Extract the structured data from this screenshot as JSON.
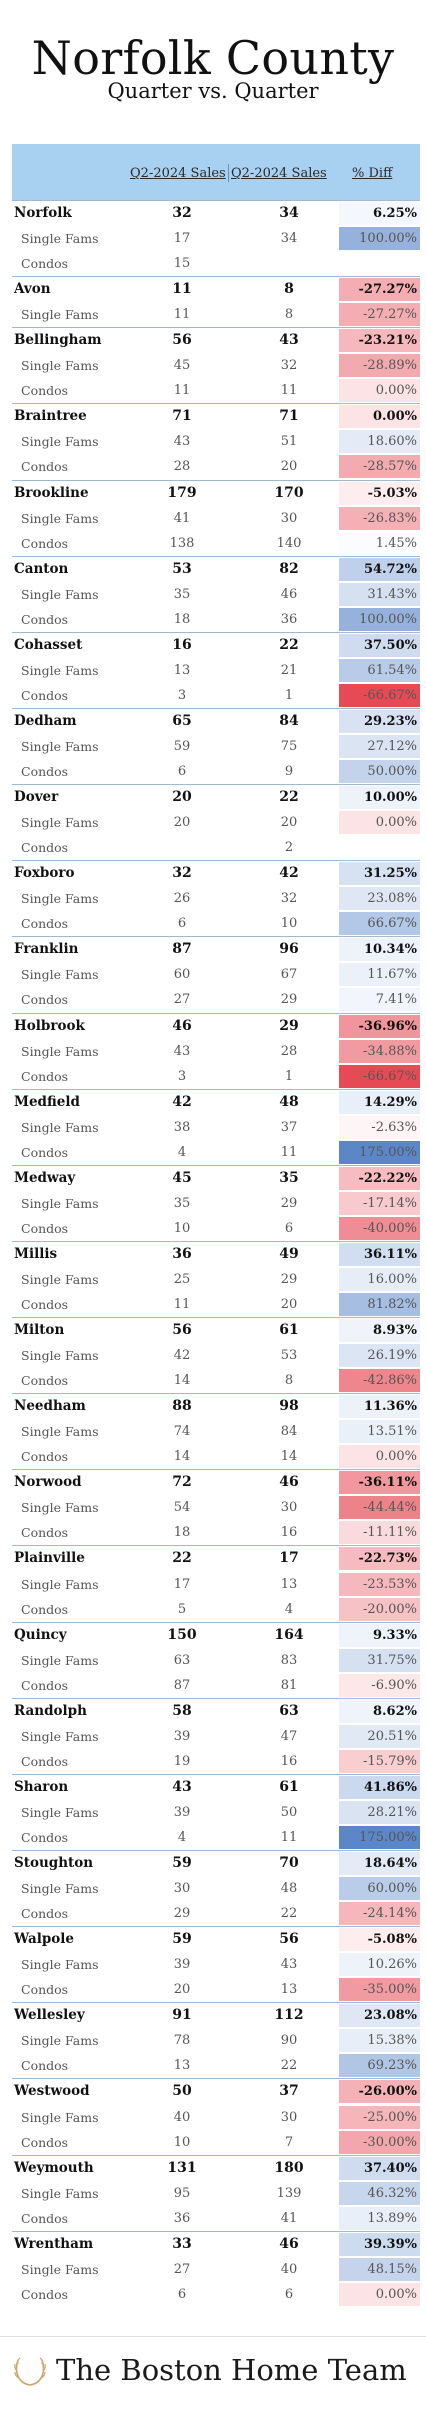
{
  "header": {
    "title": "Norfolk County",
    "subtitle": "Quarter vs. Quarter"
  },
  "table": {
    "columns": [
      "Q2-2024 Sales",
      "Q2-2024 Sales",
      "% Diff"
    ],
    "rows": [
      {
        "name": "Norfolk",
        "kind": "total",
        "a": "32",
        "b": "34",
        "diff": "6.25%",
        "v": 6.25
      },
      {
        "name": "Single Fams",
        "kind": "sub",
        "a": "17",
        "b": "34",
        "diff": "100.00%",
        "v": 100
      },
      {
        "name": "Condos",
        "kind": "sub",
        "a": "15",
        "b": "",
        "diff": "",
        "v": null
      },
      {
        "name": "Avon",
        "kind": "total",
        "a": "11",
        "b": "8",
        "diff": "-27.27%",
        "v": -27.27
      },
      {
        "name": "Single Fams",
        "kind": "sub",
        "a": "11",
        "b": "8",
        "diff": "-27.27%",
        "v": -27.27
      },
      {
        "name": "Bellingham",
        "kind": "total",
        "a": "56",
        "b": "43",
        "diff": "-23.21%",
        "v": -23.21
      },
      {
        "name": "Single Fams",
        "kind": "sub",
        "a": "45",
        "b": "32",
        "diff": "-28.89%",
        "v": -28.89
      },
      {
        "name": "Condos",
        "kind": "sub",
        "a": "11",
        "b": "11",
        "diff": "0.00%",
        "v": 0
      },
      {
        "name": "Braintree",
        "kind": "total",
        "a": "71",
        "b": "71",
        "diff": "0.00%",
        "v": 0
      },
      {
        "name": "Single Fams",
        "kind": "sub",
        "a": "43",
        "b": "51",
        "diff": "18.60%",
        "v": 18.6
      },
      {
        "name": "Condos",
        "kind": "sub",
        "a": "28",
        "b": "20",
        "diff": "-28.57%",
        "v": -28.57
      },
      {
        "name": "Brookline",
        "kind": "total",
        "a": "179",
        "b": "170",
        "diff": "-5.03%",
        "v": -5.03
      },
      {
        "name": "Single Fams",
        "kind": "sub",
        "a": "41",
        "b": "30",
        "diff": "-26.83%",
        "v": -26.83
      },
      {
        "name": "Condos",
        "kind": "sub",
        "a": "138",
        "b": "140",
        "diff": "1.45%",
        "v": 1.45
      },
      {
        "name": "Canton",
        "kind": "total",
        "a": "53",
        "b": "82",
        "diff": "54.72%",
        "v": 54.72
      },
      {
        "name": "Single Fams",
        "kind": "sub",
        "a": "35",
        "b": "46",
        "diff": "31.43%",
        "v": 31.43
      },
      {
        "name": "Condos",
        "kind": "sub",
        "a": "18",
        "b": "36",
        "diff": "100.00%",
        "v": 100
      },
      {
        "name": "Cohasset",
        "kind": "total",
        "a": "16",
        "b": "22",
        "diff": "37.50%",
        "v": 37.5
      },
      {
        "name": "Single Fams",
        "kind": "sub",
        "a": "13",
        "b": "21",
        "diff": "61.54%",
        "v": 61.54
      },
      {
        "name": "Condos",
        "kind": "sub",
        "a": "3",
        "b": "1",
        "diff": "-66.67%",
        "v": -66.67
      },
      {
        "name": "Dedham",
        "kind": "total",
        "a": "65",
        "b": "84",
        "diff": "29.23%",
        "v": 29.23
      },
      {
        "name": "Single Fams",
        "kind": "sub",
        "a": "59",
        "b": "75",
        "diff": "27.12%",
        "v": 27.12
      },
      {
        "name": "Condos",
        "kind": "sub",
        "a": "6",
        "b": "9",
        "diff": "50.00%",
        "v": 50
      },
      {
        "name": "Dover",
        "kind": "total",
        "a": "20",
        "b": "22",
        "diff": "10.00%",
        "v": 10
      },
      {
        "name": "Single Fams",
        "kind": "sub",
        "a": "20",
        "b": "20",
        "diff": "0.00%",
        "v": 0
      },
      {
        "name": "Condos",
        "kind": "sub",
        "a": "",
        "b": "2",
        "diff": "",
        "v": null
      },
      {
        "name": "Foxboro",
        "kind": "total",
        "a": "32",
        "b": "42",
        "diff": "31.25%",
        "v": 31.25
      },
      {
        "name": "Single Fams",
        "kind": "sub",
        "a": "26",
        "b": "32",
        "diff": "23.08%",
        "v": 23.08
      },
      {
        "name": "Condos",
        "kind": "sub",
        "a": "6",
        "b": "10",
        "diff": "66.67%",
        "v": 66.67
      },
      {
        "name": "Franklin",
        "kind": "total",
        "a": "87",
        "b": "96",
        "diff": "10.34%",
        "v": 10.34
      },
      {
        "name": "Single Fams",
        "kind": "sub",
        "a": "60",
        "b": "67",
        "diff": "11.67%",
        "v": 11.67
      },
      {
        "name": "Condos",
        "kind": "sub",
        "a": "27",
        "b": "29",
        "diff": "7.41%",
        "v": 7.41
      },
      {
        "name": "Holbrook",
        "kind": "total",
        "a": "46",
        "b": "29",
        "diff": "-36.96%",
        "v": -36.96
      },
      {
        "name": "Single Fams",
        "kind": "sub",
        "a": "43",
        "b": "28",
        "diff": "-34.88%",
        "v": -34.88
      },
      {
        "name": "Condos",
        "kind": "sub",
        "a": "3",
        "b": "1",
        "diff": "-66.67%",
        "v": -66.67
      },
      {
        "name": "Medfield",
        "kind": "total",
        "a": "42",
        "b": "48",
        "diff": "14.29%",
        "v": 14.29
      },
      {
        "name": "Single Fams",
        "kind": "sub",
        "a": "38",
        "b": "37",
        "diff": "-2.63%",
        "v": -2.63
      },
      {
        "name": "Condos",
        "kind": "sub",
        "a": "4",
        "b": "11",
        "diff": "175.00%",
        "v": 175
      },
      {
        "name": "Medway",
        "kind": "total",
        "a": "45",
        "b": "35",
        "diff": "-22.22%",
        "v": -22.22
      },
      {
        "name": "Single Fams",
        "kind": "sub",
        "a": "35",
        "b": "29",
        "diff": "-17.14%",
        "v": -17.14
      },
      {
        "name": "Condos",
        "kind": "sub",
        "a": "10",
        "b": "6",
        "diff": "-40.00%",
        "v": -40
      },
      {
        "name": "Millis",
        "kind": "total",
        "a": "36",
        "b": "49",
        "diff": "36.11%",
        "v": 36.11
      },
      {
        "name": "Single Fams",
        "kind": "sub",
        "a": "25",
        "b": "29",
        "diff": "16.00%",
        "v": 16
      },
      {
        "name": "Condos",
        "kind": "sub",
        "a": "11",
        "b": "20",
        "diff": "81.82%",
        "v": 81.82
      },
      {
        "name": "Milton",
        "kind": "total",
        "a": "56",
        "b": "61",
        "diff": "8.93%",
        "v": 8.93
      },
      {
        "name": "Single Fams",
        "kind": "sub",
        "a": "42",
        "b": "53",
        "diff": "26.19%",
        "v": 26.19
      },
      {
        "name": "Condos",
        "kind": "sub",
        "a": "14",
        "b": "8",
        "diff": "-42.86%",
        "v": -42.86
      },
      {
        "name": "Needham",
        "kind": "total",
        "a": "88",
        "b": "98",
        "diff": "11.36%",
        "v": 11.36
      },
      {
        "name": "Single Fams",
        "kind": "sub",
        "a": "74",
        "b": "84",
        "diff": "13.51%",
        "v": 13.51
      },
      {
        "name": "Condos",
        "kind": "sub",
        "a": "14",
        "b": "14",
        "diff": "0.00%",
        "v": 0
      },
      {
        "name": "Norwood",
        "kind": "total",
        "a": "72",
        "b": "46",
        "diff": "-36.11%",
        "v": -36.11
      },
      {
        "name": "Single Fams",
        "kind": "sub",
        "a": "54",
        "b": "30",
        "diff": "-44.44%",
        "v": -44.44
      },
      {
        "name": "Condos",
        "kind": "sub",
        "a": "18",
        "b": "16",
        "diff": "-11.11%",
        "v": -11.11
      },
      {
        "name": "Plainville",
        "kind": "total",
        "a": "22",
        "b": "17",
        "diff": "-22.73%",
        "v": -22.73
      },
      {
        "name": "Single Fams",
        "kind": "sub",
        "a": "17",
        "b": "13",
        "diff": "-23.53%",
        "v": -23.53
      },
      {
        "name": "Condos",
        "kind": "sub",
        "a": "5",
        "b": "4",
        "diff": "-20.00%",
        "v": -20
      },
      {
        "name": "Quincy",
        "kind": "total",
        "a": "150",
        "b": "164",
        "diff": "9.33%",
        "v": 9.33
      },
      {
        "name": "Single Fams",
        "kind": "sub",
        "a": "63",
        "b": "83",
        "diff": "31.75%",
        "v": 31.75
      },
      {
        "name": "Condos",
        "kind": "sub",
        "a": "87",
        "b": "81",
        "diff": "-6.90%",
        "v": -6.9
      },
      {
        "name": "Randolph",
        "kind": "total",
        "a": "58",
        "b": "63",
        "diff": "8.62%",
        "v": 8.62
      },
      {
        "name": "Single Fams",
        "kind": "sub",
        "a": "39",
        "b": "47",
        "diff": "20.51%",
        "v": 20.51
      },
      {
        "name": "Condos",
        "kind": "sub",
        "a": "19",
        "b": "16",
        "diff": "-15.79%",
        "v": -15.79
      },
      {
        "name": "Sharon",
        "kind": "total",
        "a": "43",
        "b": "61",
        "diff": "41.86%",
        "v": 41.86
      },
      {
        "name": "Single Fams",
        "kind": "sub",
        "a": "39",
        "b": "50",
        "diff": "28.21%",
        "v": 28.21
      },
      {
        "name": "Condos",
        "kind": "sub",
        "a": "4",
        "b": "11",
        "diff": "175.00%",
        "v": 175
      },
      {
        "name": "Stoughton",
        "kind": "total",
        "a": "59",
        "b": "70",
        "diff": "18.64%",
        "v": 18.64
      },
      {
        "name": "Single Fams",
        "kind": "sub",
        "a": "30",
        "b": "48",
        "diff": "60.00%",
        "v": 60
      },
      {
        "name": "Condos",
        "kind": "sub",
        "a": "29",
        "b": "22",
        "diff": "-24.14%",
        "v": -24.14
      },
      {
        "name": "Walpole",
        "kind": "total",
        "a": "59",
        "b": "56",
        "diff": "-5.08%",
        "v": -5.08
      },
      {
        "name": "Single Fams",
        "kind": "sub",
        "a": "39",
        "b": "43",
        "diff": "10.26%",
        "v": 10.26
      },
      {
        "name": "Condos",
        "kind": "sub",
        "a": "20",
        "b": "13",
        "diff": "-35.00%",
        "v": -35
      },
      {
        "name": "Wellesley",
        "kind": "total",
        "a": "91",
        "b": "112",
        "diff": "23.08%",
        "v": 23.08
      },
      {
        "name": "Single Fams",
        "kind": "sub",
        "a": "78",
        "b": "90",
        "diff": "15.38%",
        "v": 15.38
      },
      {
        "name": "Condos",
        "kind": "sub",
        "a": "13",
        "b": "22",
        "diff": "69.23%",
        "v": 69.23
      },
      {
        "name": "Westwood",
        "kind": "total",
        "a": "50",
        "b": "37",
        "diff": "-26.00%",
        "v": -26
      },
      {
        "name": "Single Fams",
        "kind": "sub",
        "a": "40",
        "b": "30",
        "diff": "-25.00%",
        "v": -25
      },
      {
        "name": "Condos",
        "kind": "sub",
        "a": "10",
        "b": "7",
        "diff": "-30.00%",
        "v": -30
      },
      {
        "name": "Weymouth",
        "kind": "total",
        "a": "131",
        "b": "180",
        "diff": "37.40%",
        "v": 37.4
      },
      {
        "name": "Single Fams",
        "kind": "sub",
        "a": "95",
        "b": "139",
        "diff": "46.32%",
        "v": 46.32
      },
      {
        "name": "Condos",
        "kind": "sub",
        "a": "36",
        "b": "41",
        "diff": "13.89%",
        "v": 13.89
      },
      {
        "name": "Wrentham",
        "kind": "total",
        "a": "33",
        "b": "46",
        "diff": "39.39%",
        "v": 39.39
      },
      {
        "name": "Single Fams",
        "kind": "sub",
        "a": "27",
        "b": "40",
        "diff": "48.15%",
        "v": 48.15
      },
      {
        "name": "Condos",
        "kind": "sub",
        "a": "6",
        "b": "6",
        "diff": "0.00%",
        "v": 0
      }
    ]
  },
  "colors": {
    "header_band": "#a8d0f0",
    "positive": "#5b87c9",
    "negative": "#e64b55",
    "neutral": "#fce4e6"
  },
  "footer": {
    "brand": "The Boston Home Team",
    "logo_icon": "laurel-wreath-icon"
  }
}
